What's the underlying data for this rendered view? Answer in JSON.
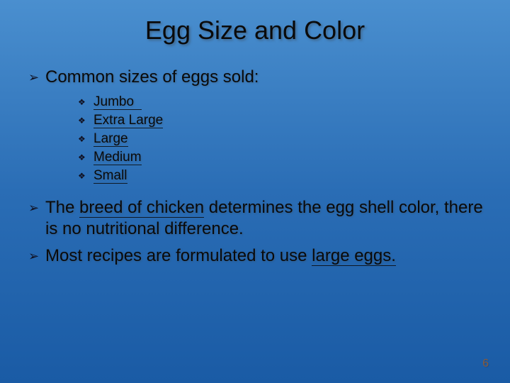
{
  "slide": {
    "background_gradient": [
      "#4a8fcf",
      "#2a6db5",
      "#1a5ba5"
    ],
    "title": "Egg Size and Color",
    "title_fontsize": 36,
    "title_color": "#0a0a0a",
    "body_fontsize": 24,
    "sub_fontsize": 19,
    "bullet_level1_glyph": "➢",
    "bullet_level2_glyph": "❖",
    "page_number": "6",
    "page_number_color": "#8a5a3a",
    "items": [
      {
        "text_before": "Common sizes of eggs sold:",
        "underlined": "",
        "text_after": "",
        "subitems": [
          {
            "underlined": "Jumbo",
            "trailing_space": true
          },
          {
            "underlined": "Extra Large",
            "trailing_space": false
          },
          {
            "underlined": "Large",
            "trailing_space": false
          },
          {
            "underlined": "Medium",
            "trailing_space": false
          },
          {
            "underlined": "Small",
            "trailing_space": false
          }
        ]
      },
      {
        "text_before": "The ",
        "underlined": "breed of chicken",
        "text_after": " determines the egg shell color, there is no nutritional difference.",
        "subitems": []
      },
      {
        "text_before": "Most recipes are formulated to use ",
        "underlined": "large eggs.",
        "text_after": "",
        "subitems": []
      }
    ]
  }
}
